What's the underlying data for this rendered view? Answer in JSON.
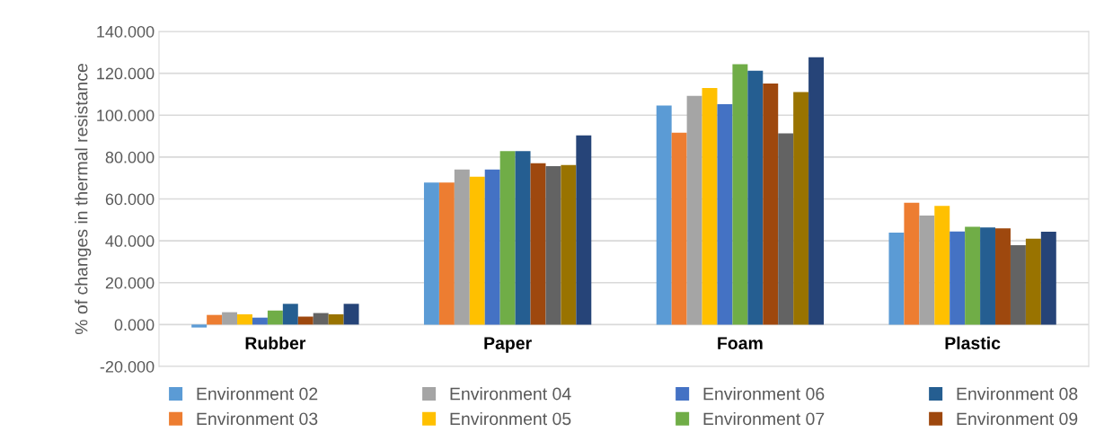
{
  "chart_data": {
    "type": "bar",
    "ylabel": "% of changes in thermal resistance",
    "categories": [
      "Rubber",
      "Paper",
      "Foam",
      "Plastic"
    ],
    "series": [
      {
        "name": "Environment 02",
        "color": "#5b9bd5",
        "values": [
          -1.4,
          67.8,
          104.6,
          43.9
        ]
      },
      {
        "name": "Environment 03",
        "color": "#ed7d31",
        "values": [
          4.6,
          67.8,
          91.6,
          58.2
        ]
      },
      {
        "name": "Environment 04",
        "color": "#a5a5a5",
        "values": [
          5.9,
          74.1,
          109.2,
          52.1
        ]
      },
      {
        "name": "Environment 05",
        "color": "#ffc000",
        "values": [
          4.9,
          70.6,
          113.0,
          56.7
        ]
      },
      {
        "name": "Environment 06",
        "color": "#4472c4",
        "values": [
          3.3,
          74.1,
          105.3,
          44.4
        ]
      },
      {
        "name": "Environment 07",
        "color": "#70ad47",
        "values": [
          6.7,
          82.8,
          124.3,
          46.7
        ]
      },
      {
        "name": "Environment 08",
        "color": "#255e91",
        "values": [
          9.9,
          82.8,
          121.2,
          46.4
        ]
      },
      {
        "name": "Environment 09",
        "color": "#9e480e",
        "values": [
          3.8,
          77.1,
          115.1,
          45.9
        ]
      },
      {
        "color": "#636363",
        "values": [
          5.5,
          75.7,
          91.3,
          37.9
        ]
      },
      {
        "color": "#997300",
        "values": [
          4.9,
          76.2,
          111.0,
          41.0
        ]
      },
      {
        "color": "#264478",
        "values": [
          9.9,
          90.3,
          127.7,
          44.3
        ]
      }
    ],
    "ylim": [
      -20,
      140
    ],
    "yticks": [
      {
        "value": -20,
        "label": "-20.000"
      },
      {
        "value": 0,
        "label": "0.000"
      },
      {
        "value": 20,
        "label": "20.000"
      },
      {
        "value": 40,
        "label": "40.000"
      },
      {
        "value": 60,
        "label": "60.000"
      },
      {
        "value": 80,
        "label": "80.000"
      },
      {
        "value": 100,
        "label": "100.000"
      },
      {
        "value": 120,
        "label": "120.000"
      },
      {
        "value": 140,
        "label": "140.000"
      }
    ],
    "grid": "y",
    "legend": "bottom"
  }
}
